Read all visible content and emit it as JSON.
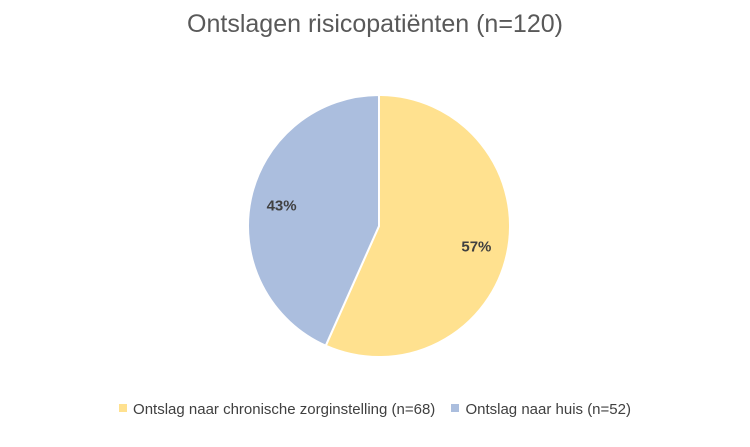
{
  "chart_data": {
    "type": "pie",
    "title": "Ontslagen risicopatiënten (n=120)",
    "categories": [
      "Ontslag naar chronische zorginstelling (n=68)",
      "Ontslag naar huis (n=52)"
    ],
    "values": [
      68,
      52
    ],
    "data_labels": [
      "57%",
      "43%"
    ],
    "colors": [
      "#FFE18F",
      "#ABBEDE"
    ],
    "legend_position": "bottom",
    "start_angle": "12 o'clock, clockwise"
  }
}
